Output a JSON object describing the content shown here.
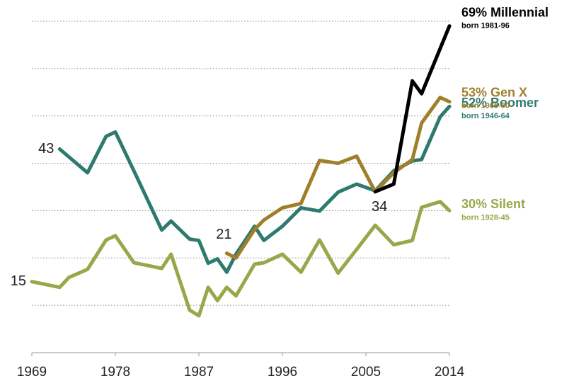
{
  "chart_data": {
    "type": "line",
    "xlim": [
      1969,
      2014
    ],
    "xticks": [
      1969,
      1978,
      1987,
      1996,
      2005,
      2014
    ],
    "ylim": [
      0,
      70
    ],
    "yticks": [
      10,
      20,
      30,
      40,
      50,
      60,
      70
    ],
    "grid": true,
    "series": [
      {
        "name": "Silent",
        "label": "30% Silent",
        "sublabel": "born 1928-45",
        "color": "#9aa64a",
        "x": [
          1969,
          1972,
          1973,
          1975,
          1977,
          1978,
          1980,
          1983,
          1984,
          1986,
          1987,
          1988,
          1989,
          1990,
          1991,
          1993,
          1994,
          1996,
          1998,
          2000,
          2002,
          2004,
          2006,
          2008,
          2010,
          2011,
          2013,
          2014
        ],
        "values": [
          15,
          13.8,
          15.9,
          17.6,
          23.8,
          24.7,
          19,
          17.8,
          20.8,
          9,
          7.8,
          13.8,
          11,
          13.8,
          12,
          18.7,
          19,
          20.8,
          17,
          23.8,
          16.8,
          21.8,
          26.9,
          22.8,
          23.7,
          30.7,
          31.9,
          30
        ]
      },
      {
        "name": "Boomer",
        "label": "52% Boomer",
        "sublabel": "born 1946-64",
        "color": "#2e7a6e",
        "x": [
          1972,
          1975,
          1977,
          1978,
          1980,
          1983,
          1984,
          1986,
          1987,
          1988,
          1989,
          1990,
          1991,
          1993,
          1994,
          1996,
          1998,
          2000,
          2002,
          2004,
          2006,
          2008,
          2010,
          2011,
          2013,
          2014
        ],
        "values": [
          43,
          38,
          45.7,
          46.6,
          38.4,
          25.9,
          27.8,
          24,
          23.7,
          18.9,
          19.8,
          17,
          20.8,
          26.7,
          23.7,
          26.7,
          30.6,
          29.9,
          33.9,
          35.6,
          34.2,
          38.4,
          40.5,
          40.8,
          49.8,
          52
        ]
      },
      {
        "name": "Gen X",
        "label": "53% Gen X",
        "sublabel": "born 1965-80",
        "color": "#a07f2a",
        "x": [
          1990,
          1991,
          1993,
          1994,
          1996,
          1998,
          2000,
          2002,
          2004,
          2006,
          2008,
          2010,
          2011,
          2013,
          2014
        ],
        "values": [
          21,
          20,
          26,
          28,
          30.6,
          31.5,
          40.6,
          40,
          41.5,
          34,
          38,
          40.8,
          48.5,
          53.9,
          53
        ]
      },
      {
        "name": "Millennial",
        "label": "69% Millennial",
        "sublabel": "born 1981-96",
        "color": "#000000",
        "x": [
          2006,
          2008,
          2010,
          2011,
          2014
        ],
        "values": [
          34,
          35.6,
          57.4,
          54.7,
          69
        ]
      }
    ],
    "annotations": [
      {
        "text": "15",
        "x": 1969,
        "y": 15
      },
      {
        "text": "43",
        "x": 1972,
        "y": 43
      },
      {
        "text": "21",
        "x": 1990,
        "y": 21
      },
      {
        "text": "34",
        "x": 2006,
        "y": 34
      }
    ]
  }
}
